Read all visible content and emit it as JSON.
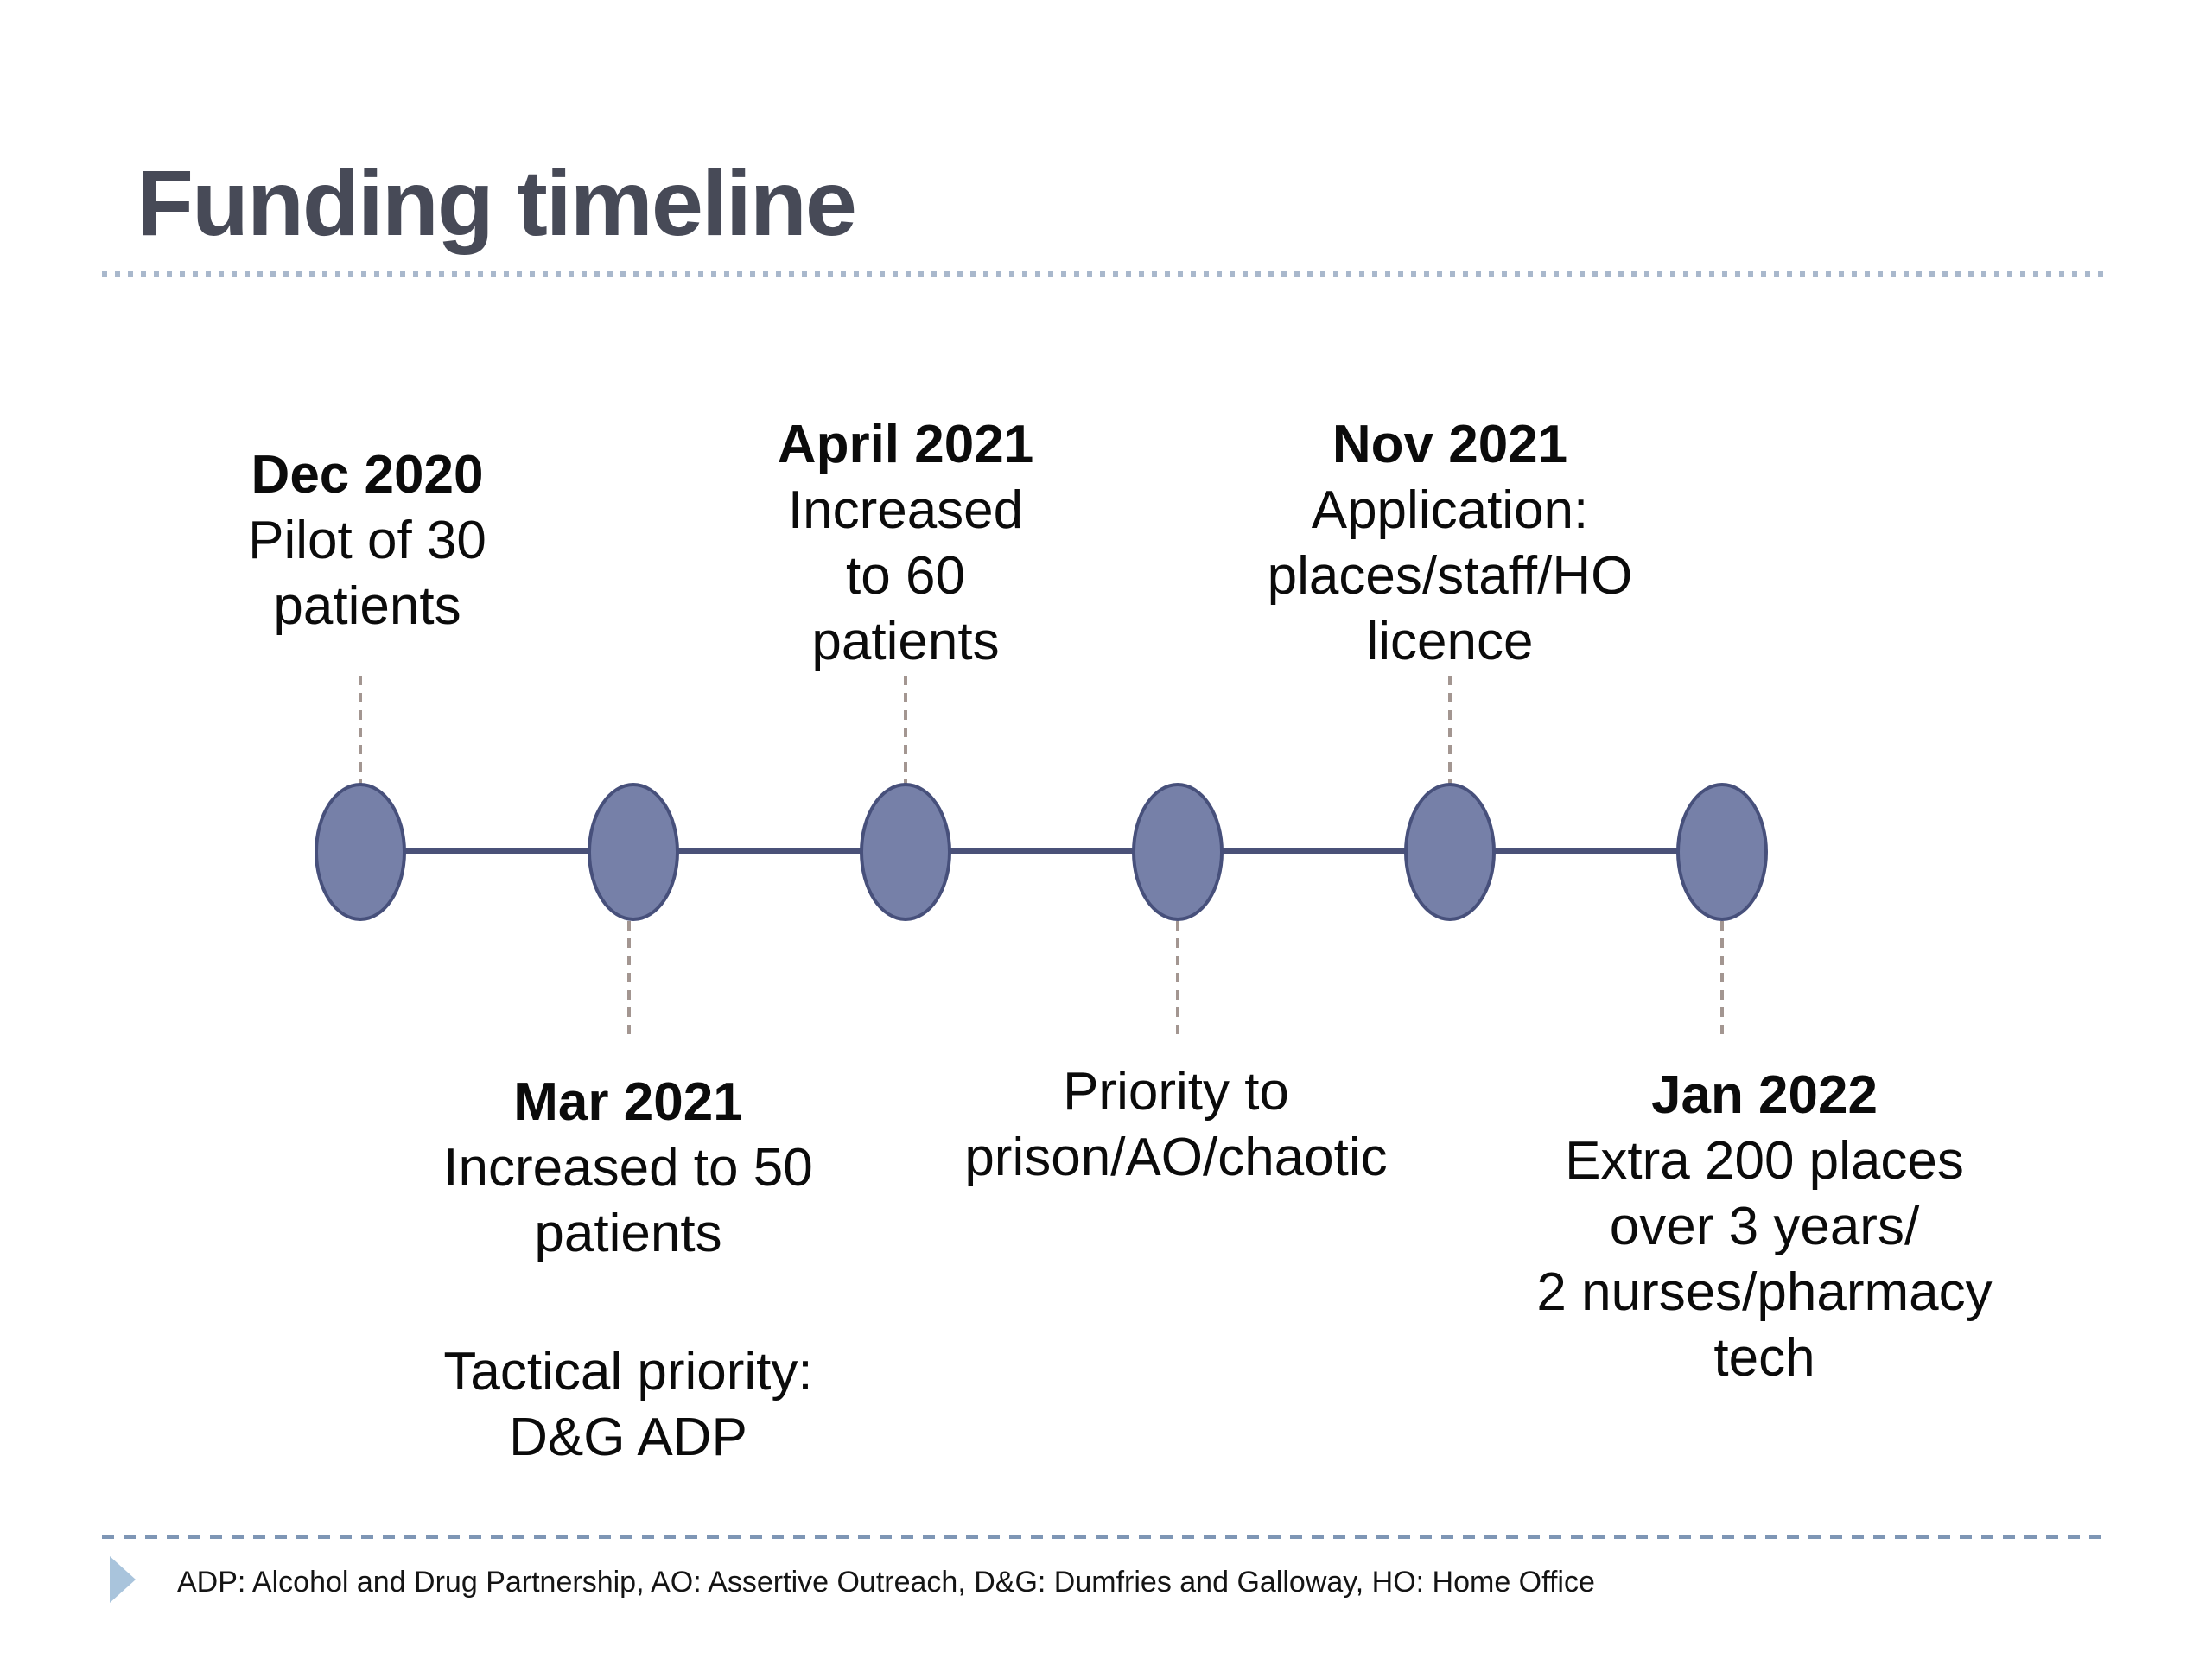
{
  "slide_title": "Funding timeline",
  "timeline": {
    "events": [
      {
        "date": "Dec 2020",
        "side": "above",
        "lines": [
          "Pilot of 30",
          "patients"
        ]
      },
      {
        "date": "Mar 2021",
        "side": "below",
        "lines": [
          "Increased to 50",
          "patients"
        ],
        "lines2": [
          "Tactical priority:",
          "D&G ADP"
        ]
      },
      {
        "date": "April 2021",
        "side": "above",
        "lines": [
          "Increased",
          "to 60",
          "patients"
        ]
      },
      {
        "side": "below",
        "lines": [
          "Priority to",
          "prison/AO/chaotic"
        ]
      },
      {
        "date": "Nov 2021",
        "side": "above",
        "lines": [
          "Application:",
          "places/staff/HO",
          "licence"
        ]
      },
      {
        "date": "Jan 2022",
        "side": "below",
        "lines": [
          "Extra 200 places",
          "over 3 years/",
          "2 nurses/pharmacy",
          "tech"
        ]
      }
    ]
  },
  "footer": {
    "text": "ADP: Alcohol and Drug Partnership, AO: Assertive Outreach, D&G: Dumfries and Galloway, HO: Home Office"
  },
  "colors": {
    "title": "#474a57",
    "divider_dots": "#a9b8cc",
    "node_fill": "#7680a8",
    "node_border": "#47507b",
    "connector": "#4a5178",
    "leader": "#a39691",
    "footer_divider": "#7e96b5",
    "footer_bullet": "#a9c4dc"
  }
}
